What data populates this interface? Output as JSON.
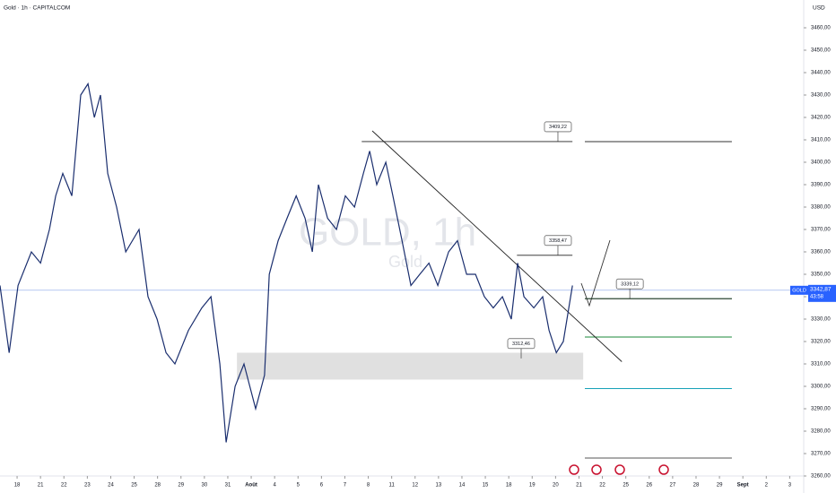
{
  "chart_data": {
    "type": "line",
    "title": "Gold · 1h · CAPITALCOM",
    "currency": "USD",
    "watermark": "GOLD, 1h",
    "watermark_sub": "Gold",
    "x": [
      -0.73,
      -0.34,
      0.04,
      0.61,
      1.0,
      1.38,
      1.65,
      1.95,
      2.34,
      2.72,
      3.03,
      3.3,
      3.56,
      3.87,
      4.25,
      4.64,
      5.21,
      5.59,
      5.98,
      6.36,
      6.74,
      7.32,
      7.89,
      8.28,
      8.66,
      8.93,
      9.31,
      9.69,
      10.19,
      10.57,
      10.77,
      11.15,
      11.53,
      11.92,
      12.3,
      12.61,
      12.87,
      13.26,
      13.64,
      14.02,
      14.41,
      14.79,
      15.06,
      15.36,
      15.75,
      16.05,
      16.44,
      16.82,
      17.2,
      17.59,
      17.97,
      18.43,
      18.81,
      19.2,
      19.58,
      19.96,
      20.34,
      20.73,
      21.11,
      21.38,
      21.65,
      22.07,
      22.45,
      22.72,
      23.03,
      23.33,
      23.72
    ],
    "series": [
      {
        "name": "GOLD",
        "color": "#1a2e6e",
        "values": [
          3345,
          3315,
          3345,
          3360,
          3355,
          3370,
          3385,
          3395,
          3385,
          3430,
          3435,
          3420,
          3430,
          3395,
          3380,
          3360,
          3370,
          3340,
          3330,
          3315,
          3310,
          3325,
          3335,
          3340,
          3310,
          3275,
          3300,
          3310,
          3290,
          3305,
          3350,
          3365,
          3375,
          3385,
          3375,
          3360,
          3390,
          3375,
          3370,
          3385,
          3380,
          3395,
          3405,
          3390,
          3400,
          3385,
          3365,
          3345,
          3350,
          3355,
          3345,
          3360,
          3365,
          3350,
          3350,
          3340,
          3335,
          3340,
          3330,
          3355,
          3340,
          3335,
          3340,
          3325,
          3315,
          3320,
          3345
        ]
      }
    ],
    "xlim": [
      -0.73,
      33.56
    ],
    "ylim": [
      3260,
      3472.4
    ],
    "xticks": [
      {
        "value": 0,
        "label": "18"
      },
      {
        "value": 1,
        "label": "21"
      },
      {
        "value": 2,
        "label": "22"
      },
      {
        "value": 3,
        "label": "23"
      },
      {
        "value": 4,
        "label": "24"
      },
      {
        "value": 5,
        "label": "25"
      },
      {
        "value": 6,
        "label": "28"
      },
      {
        "value": 7,
        "label": "29"
      },
      {
        "value": 8,
        "label": "30"
      },
      {
        "value": 9,
        "label": "31"
      },
      {
        "value": 10,
        "label": "Août"
      },
      {
        "value": 11,
        "label": "4"
      },
      {
        "value": 12,
        "label": "5"
      },
      {
        "value": 13,
        "label": "6"
      },
      {
        "value": 14,
        "label": "7"
      },
      {
        "value": 15,
        "label": "8"
      },
      {
        "value": 16,
        "label": "11"
      },
      {
        "value": 17,
        "label": "12"
      },
      {
        "value": 18,
        "label": "13"
      },
      {
        "value": 19,
        "label": "14"
      },
      {
        "value": 20,
        "label": "15"
      },
      {
        "value": 21,
        "label": "18"
      },
      {
        "value": 22,
        "label": "19"
      },
      {
        "value": 23,
        "label": "20"
      },
      {
        "value": 24,
        "label": "21"
      },
      {
        "value": 25,
        "label": "22"
      },
      {
        "value": 26,
        "label": "25"
      },
      {
        "value": 27,
        "label": "26"
      },
      {
        "value": 28,
        "label": "27"
      },
      {
        "value": 29,
        "label": "28"
      },
      {
        "value": 30,
        "label": "29"
      },
      {
        "value": 31,
        "label": "Sept"
      },
      {
        "value": 32,
        "label": "2"
      },
      {
        "value": 33,
        "label": "3"
      }
    ],
    "yticks": [
      {
        "value": 3260,
        "label": "3260,00"
      },
      {
        "value": 3270,
        "label": "3270,00"
      },
      {
        "value": 3280,
        "label": "3280,00"
      },
      {
        "value": 3290,
        "label": "3290,00"
      },
      {
        "value": 3300,
        "label": "3300,00"
      },
      {
        "value": 3310,
        "label": "3310,00"
      },
      {
        "value": 3320,
        "label": "3320,00"
      },
      {
        "value": 3330,
        "label": "3330,00"
      },
      {
        "value": 3340,
        "label": "3340,00"
      },
      {
        "value": 3350,
        "label": "3350,00"
      },
      {
        "value": 3360,
        "label": "3360,00"
      },
      {
        "value": 3370,
        "label": "3370,00"
      },
      {
        "value": 3380,
        "label": "3380,00"
      },
      {
        "value": 3390,
        "label": "3390,00"
      },
      {
        "value": 3400,
        "label": "3400,00"
      },
      {
        "value": 3410,
        "label": "3410,00"
      },
      {
        "value": 3420,
        "label": "3420,00"
      },
      {
        "value": 3430,
        "label": "3430,00"
      },
      {
        "value": 3440,
        "label": "3440,00"
      },
      {
        "value": 3450,
        "label": "3450,00"
      },
      {
        "value": 3460,
        "label": "3460,00"
      }
    ],
    "price_tag": {
      "symbol": "GOLD",
      "value": 3342.87,
      "label": "3342,87",
      "countdown": "43:58"
    },
    "callouts": [
      {
        "value": 3409.22,
        "label": "3409,22",
        "x": [
          14.72,
          23.72
        ],
        "label_x": 23.1
      },
      {
        "value": 3358.47,
        "label": "3358,47",
        "x": [
          21.35,
          23.72
        ],
        "label_x": 23.1
      },
      {
        "value": 3339.12,
        "label": "3339,12",
        "x": [
          24.25,
          30.53
        ],
        "label_x": 26.17
      },
      {
        "value": 3312.46,
        "label": "3312,46",
        "x": [
          21.53,
          21.53
        ],
        "label_x": 21.53
      }
    ],
    "levels": [
      {
        "value": 3409.22,
        "color": "#333333",
        "x": [
          24.25,
          30.53
        ]
      },
      {
        "value": 3339.12,
        "color": "#1b8a3a",
        "x": [
          24.25,
          30.53
        ]
      },
      {
        "value": 3322,
        "color": "#1b8a3a",
        "x": [
          24.25,
          30.53
        ]
      },
      {
        "value": 3299,
        "color": "#17a2b8",
        "x": [
          24.25,
          30.53
        ]
      },
      {
        "value": 3268,
        "color": "#555555",
        "x": [
          24.25,
          30.53
        ]
      }
    ],
    "zone": {
      "ylim": [
        3303,
        3315
      ],
      "x": [
        9.39,
        24.18
      ]
    },
    "trendline": {
      "x": [
        15.17,
        25.83
      ],
      "y": [
        3414,
        3311
      ]
    }
  }
}
